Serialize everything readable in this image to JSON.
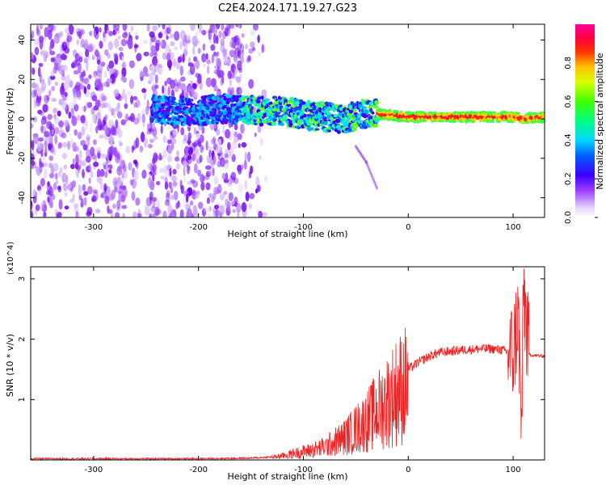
{
  "title": "C2E4.2024.171.19.27.G23",
  "chart_data": [
    {
      "type": "heatmap",
      "title": "C2E4.2024.171.19.27.G23",
      "xlabel": "Height of straight line (km)",
      "ylabel": "Frequency (Hz)",
      "xlim": [
        -360,
        130
      ],
      "ylim": [
        -50,
        48
      ],
      "xticks": [
        -300,
        -200,
        -100,
        0,
        100
      ],
      "yticks": [
        -40,
        -20,
        0,
        20,
        40
      ],
      "colorbar": {
        "label": "Normalized spectral amplitude",
        "range": [
          0,
          1
        ],
        "ticks": [
          0.0,
          0.2,
          0.4,
          0.6,
          0.8
        ],
        "colors": [
          "#ffffff",
          "#cfaef5",
          "#7a00ff",
          "#2200ff",
          "#00c8ff",
          "#00ff60",
          "#a0ff00",
          "#ffff00",
          "#ff6000",
          "#ff0030",
          "#ff00a0"
        ]
      },
      "ridge": {
        "description_points_km_hz": [
          [
            -245,
            5
          ],
          [
            -220,
            4
          ],
          [
            -200,
            4
          ],
          [
            -180,
            5
          ],
          [
            -160,
            5
          ],
          [
            -140,
            4
          ],
          [
            -120,
            4
          ],
          [
            -100,
            2
          ],
          [
            -80,
            1
          ],
          [
            -60,
            0
          ],
          [
            -40,
            3
          ],
          [
            -20,
            2
          ],
          [
            0,
            1
          ],
          [
            20,
            1
          ],
          [
            40,
            1
          ],
          [
            60,
            1
          ],
          [
            80,
            1
          ],
          [
            100,
            1
          ],
          [
            110,
            0
          ],
          [
            130,
            1
          ]
        ]
      },
      "weak_branch": [
        [
          -50,
          -14
        ],
        [
          -40,
          -22
        ],
        [
          -30,
          -35
        ]
      ]
    },
    {
      "type": "line",
      "xlabel": "Height of straight line (km)",
      "ylabel": "SNR (10 * v/v)",
      "y_multiplier": "(x10^4)",
      "xlim": [
        -360,
        130
      ],
      "ylim": [
        0,
        3.2
      ],
      "xticks": [
        -300,
        -200,
        -100,
        0,
        100
      ],
      "yticks": [
        1,
        2,
        3
      ],
      "series": [
        {
          "color": "#ee2222",
          "x": [
            -360,
            -300,
            -250,
            -200,
            -150,
            -130,
            -120,
            -110,
            -100,
            -90,
            -80,
            -70,
            -60,
            -50,
            -40,
            -30,
            -20,
            -10,
            0,
            10,
            20,
            30,
            40,
            50,
            60,
            70,
            80,
            90,
            100,
            105,
            108,
            110,
            115,
            120,
            130
          ],
          "y": [
            0.02,
            0.02,
            0.02,
            0.02,
            0.03,
            0.05,
            0.08,
            0.12,
            0.16,
            0.2,
            0.25,
            0.35,
            0.45,
            0.6,
            0.75,
            0.95,
            1.15,
            1.35,
            1.5,
            1.62,
            1.72,
            1.78,
            1.8,
            1.82,
            1.83,
            1.84,
            1.84,
            1.82,
            1.75,
            2.4,
            0.4,
            2.8,
            1.75,
            1.73,
            1.72
          ]
        }
      ]
    }
  ]
}
